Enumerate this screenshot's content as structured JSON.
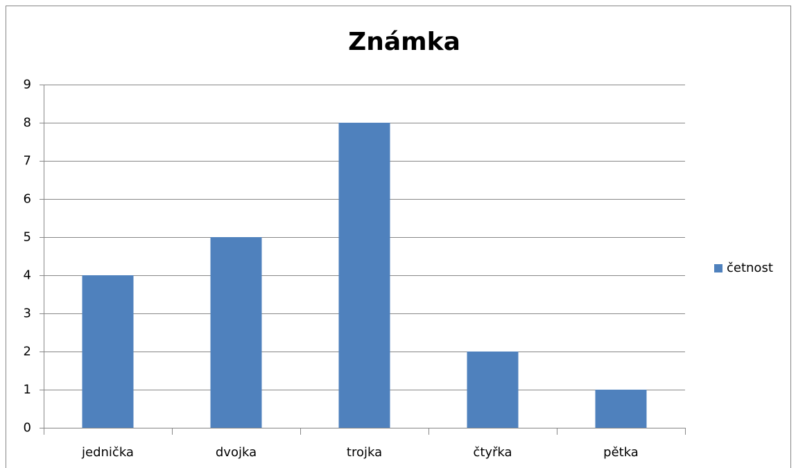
{
  "chart_data": {
    "type": "bar",
    "title": "Známka",
    "categories": [
      "jednička",
      "dvojka",
      "trojka",
      "čtyřka",
      "pětka"
    ],
    "series": [
      {
        "name": "četnost",
        "color": "#4f81bd",
        "values": [
          4,
          5,
          8,
          2,
          1
        ]
      }
    ],
    "ylim": [
      0,
      9
    ],
    "yticks": [
      0,
      1,
      2,
      3,
      4,
      5,
      6,
      7,
      8,
      9
    ],
    "grid": true,
    "legend": "right"
  }
}
